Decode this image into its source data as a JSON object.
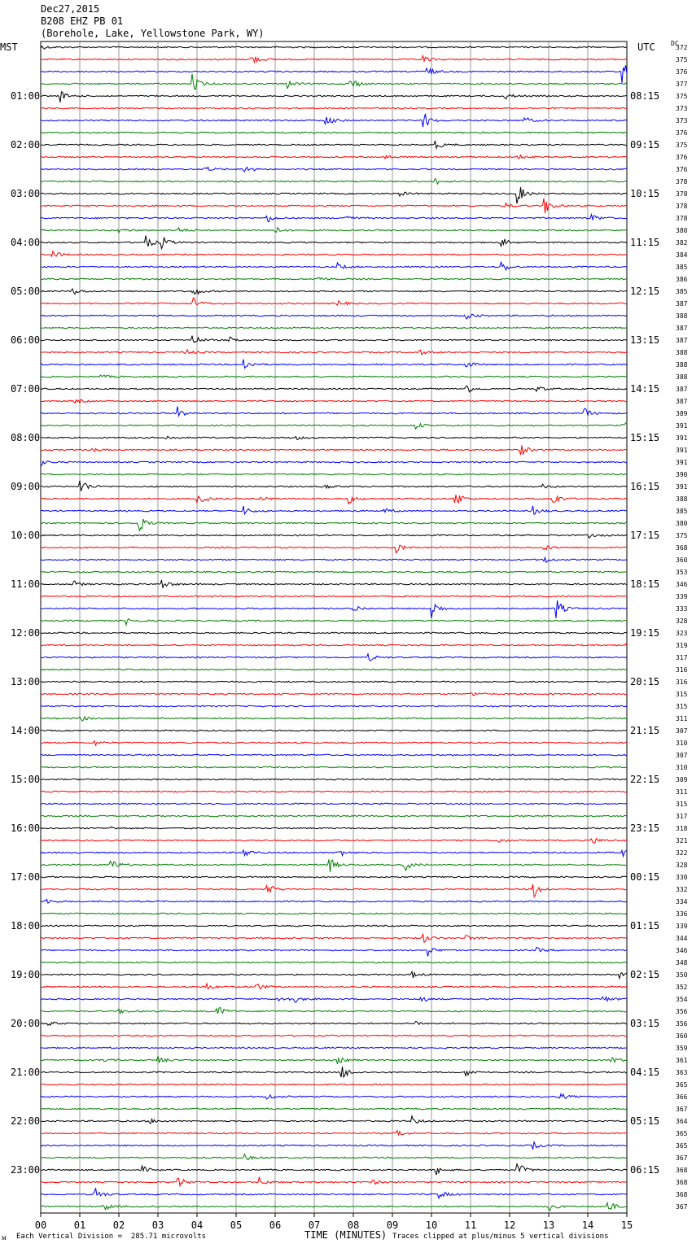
{
  "header": {
    "date": "Dec27,2015",
    "station": "B208 EHZ PB 01",
    "location": "(Borehole, Lake, Yellowstone Park, WY)"
  },
  "left_zone": "MST",
  "right_zone": "UTC",
  "dc_label": "DC",
  "footer": {
    "scale_note": "Each Vertical Division =  285.71 microvolts",
    "xlabel": "TIME (MINUTES)",
    "clip_note": "Traces clipped at plus/minus 5 vertical divisions",
    "corner_mark": "ᴍ"
  },
  "colors": {
    "black": "#000000",
    "red": "#ff0000",
    "blue": "#0000ff",
    "green": "#007f00",
    "grid": "#808080"
  },
  "chart_data": {
    "type": "line",
    "title": "B208 EHZ PB 01",
    "xlabel": "TIME (MINUTES)",
    "ylabel": "",
    "xlim": [
      0,
      15
    ],
    "x_ticks": [
      "00",
      "01",
      "02",
      "03",
      "04",
      "05",
      "06",
      "07",
      "08",
      "09",
      "10",
      "11",
      "12",
      "13",
      "14",
      "15"
    ],
    "trace_colors": [
      "black",
      "red",
      "blue",
      "green"
    ],
    "hour_labels_mst": [
      "01:00",
      "02:00",
      "03:00",
      "04:00",
      "05:00",
      "06:00",
      "07:00",
      "08:00",
      "09:00",
      "10:00",
      "11:00",
      "12:00",
      "13:00",
      "14:00",
      "15:00",
      "16:00",
      "17:00",
      "18:00",
      "19:00",
      "20:00",
      "21:00",
      "22:00",
      "23:00"
    ],
    "hour_labels_utc": [
      "08:15",
      "09:15",
      "10:15",
      "11:15",
      "12:15",
      "13:15",
      "14:15",
      "15:15",
      "16:15",
      "17:15",
      "18:15",
      "19:15",
      "20:15",
      "21:15",
      "22:15",
      "23:15",
      "00:15",
      "01:15",
      "02:15",
      "03:15",
      "04:15",
      "05:15",
      "06:15"
    ],
    "dc_values": [
      372,
      375,
      376,
      377,
      375,
      373,
      373,
      376,
      375,
      376,
      376,
      378,
      378,
      378,
      378,
      380,
      382,
      384,
      385,
      386,
      385,
      387,
      388,
      387,
      387,
      388,
      388,
      388,
      387,
      387,
      389,
      391,
      391,
      391,
      391,
      390,
      391,
      388,
      385,
      380,
      375,
      368,
      360,
      353,
      346,
      339,
      333,
      328,
      323,
      319,
      317,
      316,
      316,
      315,
      315,
      311,
      307,
      310,
      307,
      310,
      309,
      311,
      315,
      317,
      318,
      321,
      322,
      328,
      330,
      332,
      334,
      336,
      339,
      344,
      346,
      348,
      350,
      352,
      354,
      356,
      356,
      360,
      359,
      361,
      363,
      365,
      366,
      367,
      364,
      365,
      365,
      367,
      368,
      368,
      368,
      367
    ],
    "events": [
      [
        0,
        0,
        0.2
      ],
      [
        1,
        5.4,
        0.5
      ],
      [
        1,
        9.8,
        0.3
      ],
      [
        2,
        9.9,
        0.4
      ],
      [
        2,
        14.9,
        1.0
      ],
      [
        3,
        3.9,
        0.8
      ],
      [
        3,
        6.3,
        0.4
      ],
      [
        3,
        7.9,
        0.9
      ],
      [
        4,
        0.5,
        0.5
      ],
      [
        4,
        11.9,
        0.3
      ],
      [
        6,
        7.3,
        0.6
      ],
      [
        6,
        9.8,
        0.8
      ],
      [
        6,
        12.4,
        0.3
      ],
      [
        8,
        10.1,
        0.4
      ],
      [
        9,
        8.8,
        0.2
      ],
      [
        9,
        12.2,
        0.3
      ],
      [
        10,
        4.2,
        0.3
      ],
      [
        10,
        5.2,
        0.5
      ],
      [
        11,
        10.1,
        0.3
      ],
      [
        12,
        9.2,
        0.2
      ],
      [
        12,
        12.2,
        1.0
      ],
      [
        13,
        12.9,
        0.8
      ],
      [
        13,
        11.9,
        0.2
      ],
      [
        14,
        5.8,
        0.4
      ],
      [
        14,
        7.8,
        0.3
      ],
      [
        14,
        14.1,
        0.4
      ],
      [
        15,
        2.0,
        0.2
      ],
      [
        15,
        3.5,
        0.3
      ],
      [
        15,
        6.0,
        0.3
      ],
      [
        16,
        2.7,
        0.6
      ],
      [
        16,
        3.1,
        0.6
      ],
      [
        16,
        11.8,
        0.4
      ],
      [
        17,
        0.3,
        0.4
      ],
      [
        18,
        7.6,
        0.3
      ],
      [
        18,
        11.8,
        0.6
      ],
      [
        19,
        7.1,
        0.3
      ],
      [
        20,
        0.8,
        0.4
      ],
      [
        20,
        3.9,
        0.5
      ],
      [
        21,
        3.9,
        0.5
      ],
      [
        21,
        7.6,
        0.3
      ],
      [
        22,
        10.9,
        0.4
      ],
      [
        24,
        3.9,
        0.5
      ],
      [
        24,
        4.8,
        0.3
      ],
      [
        25,
        3.7,
        0.3
      ],
      [
        25,
        9.7,
        0.2
      ],
      [
        26,
        5.2,
        0.6
      ],
      [
        26,
        10.9,
        0.3
      ],
      [
        27,
        1.5,
        0.2
      ],
      [
        28,
        10.9,
        0.4
      ],
      [
        28,
        12.7,
        0.3
      ],
      [
        29,
        0.9,
        0.2
      ],
      [
        30,
        3.5,
        0.6
      ],
      [
        30,
        13.9,
        0.5
      ],
      [
        31,
        9.6,
        0.3
      ],
      [
        31,
        14.9,
        0.3
      ],
      [
        32,
        3.2,
        0.2
      ],
      [
        32,
        6.5,
        0.2
      ],
      [
        33,
        1.3,
        0.2
      ],
      [
        33,
        12.3,
        0.5
      ],
      [
        34,
        0.0,
        0.3
      ],
      [
        36,
        1.0,
        1.0
      ],
      [
        36,
        7.3,
        0.2
      ],
      [
        36,
        12.8,
        0.2
      ],
      [
        37,
        4.0,
        1.0
      ],
      [
        37,
        5.6,
        0.3
      ],
      [
        37,
        7.9,
        0.4
      ],
      [
        37,
        10.6,
        1.0
      ],
      [
        37,
        13.1,
        0.7
      ],
      [
        38,
        5.2,
        0.4
      ],
      [
        38,
        8.8,
        0.2
      ],
      [
        38,
        12.6,
        0.4
      ],
      [
        39,
        2.5,
        0.9
      ],
      [
        40,
        14.0,
        0.2
      ],
      [
        41,
        9.1,
        0.4
      ],
      [
        41,
        12.9,
        0.2
      ],
      [
        42,
        12.9,
        0.3
      ],
      [
        44,
        0.8,
        0.4
      ],
      [
        44,
        3.1,
        0.5
      ],
      [
        46,
        8.0,
        0.4
      ],
      [
        46,
        10.0,
        1.0
      ],
      [
        46,
        13.2,
        0.9
      ],
      [
        47,
        2.2,
        0.3
      ],
      [
        49,
        14.9,
        0.2
      ],
      [
        50,
        8.4,
        0.3
      ],
      [
        53,
        11.0,
        0.2
      ],
      [
        55,
        1.0,
        0.3
      ],
      [
        57,
        1.4,
        0.2
      ],
      [
        64,
        1.8,
        0.1
      ],
      [
        65,
        11.7,
        0.2
      ],
      [
        65,
        14.1,
        0.4
      ],
      [
        66,
        5.2,
        0.5
      ],
      [
        66,
        7.6,
        0.5
      ],
      [
        66,
        14.9,
        0.3
      ],
      [
        67,
        1.8,
        0.6
      ],
      [
        67,
        7.4,
        0.6
      ],
      [
        67,
        9.3,
        0.6
      ],
      [
        69,
        5.8,
        0.6
      ],
      [
        69,
        12.6,
        0.9
      ],
      [
        70,
        0.1,
        0.3
      ],
      [
        73,
        9.8,
        0.4
      ],
      [
        73,
        10.9,
        0.2
      ],
      [
        74,
        9.9,
        0.5
      ],
      [
        74,
        12.7,
        0.2
      ],
      [
        76,
        9.5,
        0.3
      ],
      [
        76,
        14.8,
        0.3
      ],
      [
        77,
        4.2,
        0.4
      ],
      [
        77,
        5.5,
        0.4
      ],
      [
        78,
        6.1,
        0.5
      ],
      [
        78,
        6.5,
        0.3
      ],
      [
        78,
        9.7,
        0.4
      ],
      [
        78,
        14.4,
        0.3
      ],
      [
        79,
        2.0,
        0.2
      ],
      [
        79,
        4.5,
        0.6
      ],
      [
        80,
        0.2,
        0.2
      ],
      [
        80,
        9.6,
        0.2
      ],
      [
        83,
        1.5,
        0.2
      ],
      [
        83,
        3.0,
        0.5
      ],
      [
        83,
        7.6,
        0.3
      ],
      [
        83,
        14.6,
        0.4
      ],
      [
        84,
        7.7,
        0.8
      ],
      [
        84,
        10.9,
        0.3
      ],
      [
        86,
        5.8,
        0.3
      ],
      [
        86,
        13.3,
        0.3
      ],
      [
        88,
        2.8,
        0.2
      ],
      [
        88,
        9.5,
        0.4
      ],
      [
        89,
        9.1,
        0.4
      ],
      [
        90,
        12.6,
        0.3
      ],
      [
        91,
        5.2,
        0.3
      ],
      [
        92,
        2.6,
        0.3
      ],
      [
        92,
        10.1,
        0.5
      ],
      [
        92,
        12.2,
        0.8
      ],
      [
        93,
        3.5,
        0.6
      ],
      [
        93,
        5.6,
        0.4
      ],
      [
        93,
        8.5,
        0.2
      ],
      [
        94,
        1.4,
        0.6
      ],
      [
        94,
        10.2,
        0.4
      ],
      [
        95,
        1.6,
        0.5
      ],
      [
        95,
        13.0,
        0.4
      ],
      [
        95,
        14.5,
        0.6
      ]
    ]
  }
}
